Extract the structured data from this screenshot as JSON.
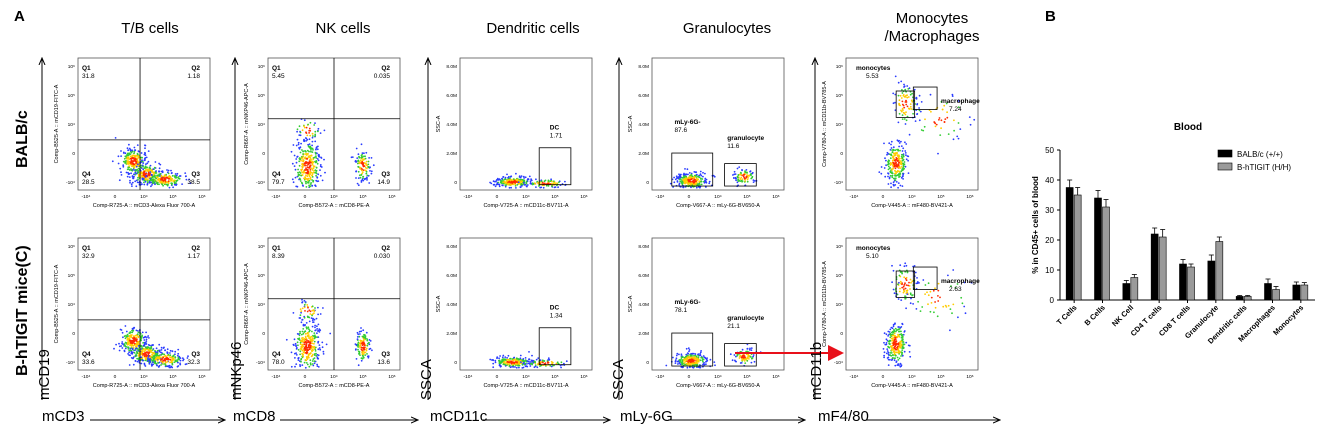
{
  "panel_labels": {
    "a": "A",
    "b": "B"
  },
  "columns": [
    {
      "title": "T/B cells"
    },
    {
      "title": "NK cells"
    },
    {
      "title": "Dendritic cells"
    },
    {
      "title": "Granulocytes"
    },
    {
      "title": "Monocytes\n/Macrophages"
    }
  ],
  "rows": [
    "BALB/c",
    "B-hTIGIT mice(C)"
  ],
  "axis_markers": {
    "bottom": [
      "mCD3",
      "mCD8",
      "mCD11c",
      "mLy-6G",
      "mF4/80"
    ],
    "side": [
      "mCD19",
      "mNKp46",
      "SSCA",
      "SSCA",
      "mCD11b"
    ]
  },
  "flow_plots": [
    {
      "row": 0,
      "col": 0,
      "xlabel": "Comp-R725-A :: mCD3-Alexa Fluor 700-A",
      "ylabel": "Comp-B525-A :: mCD19-FITC-A",
      "gates": [
        {
          "name": "Q1",
          "value": "31.8"
        },
        {
          "name": "Q2",
          "value": "1.18"
        },
        {
          "name": "Q4",
          "value": "28.5"
        },
        {
          "name": "Q3",
          "value": "38.5"
        }
      ]
    },
    {
      "row": 0,
      "col": 1,
      "xlabel": "Comp-B572-A :: mCD8-PE-A",
      "ylabel": "Comp-R667-A :: mNKP46-APC-A",
      "gates": [
        {
          "name": "Q1",
          "value": "5.45"
        },
        {
          "name": "Q2",
          "value": "0.035"
        },
        {
          "name": "Q4",
          "value": "79.7"
        },
        {
          "name": "Q3",
          "value": "14.9"
        }
      ]
    },
    {
      "row": 0,
      "col": 2,
      "xlabel": "Comp-V725-A :: mCD11c-BV711-A",
      "ylabel": "SSC-A",
      "gates": [
        {
          "name": "DC",
          "value": "1.71"
        }
      ]
    },
    {
      "row": 0,
      "col": 3,
      "xlabel": "Comp-V667-A :: mLy-6G-BV650-A",
      "ylabel": "SSC-A",
      "gates": [
        {
          "name": "mLy-6G-",
          "value": "87.6"
        },
        {
          "name": "granulocyte",
          "value": "11.6"
        }
      ]
    },
    {
      "row": 0,
      "col": 4,
      "xlabel": "Comp-V445-A :: mF480-BV421-A",
      "ylabel": "Comp-V780-A :: mCD11b-BV785-A",
      "gates": [
        {
          "name": "monocytes",
          "value": "5.53"
        },
        {
          "name": "macrophage",
          "value": "7.24"
        }
      ]
    },
    {
      "row": 1,
      "col": 0,
      "xlabel": "Comp-R725-A :: mCD3-Alexa Fluor 700-A",
      "ylabel": "Comp-B525-A :: mCD19-FITC-A",
      "gates": [
        {
          "name": "Q1",
          "value": "32.9"
        },
        {
          "name": "Q2",
          "value": "1.17"
        },
        {
          "name": "Q4",
          "value": "33.6"
        },
        {
          "name": "Q3",
          "value": "32.3"
        }
      ]
    },
    {
      "row": 1,
      "col": 1,
      "xlabel": "Comp-B572-A :: mCD8-PE-A",
      "ylabel": "Comp-R667-A :: mNKP46-APC-A",
      "gates": [
        {
          "name": "Q1",
          "value": "8.39"
        },
        {
          "name": "Q2",
          "value": "0.030"
        },
        {
          "name": "Q4",
          "value": "78.0"
        },
        {
          "name": "Q3",
          "value": "13.6"
        }
      ]
    },
    {
      "row": 1,
      "col": 2,
      "xlabel": "Comp-V725-A :: mCD11c-BV711-A",
      "ylabel": "SSC-A",
      "gates": [
        {
          "name": "DC",
          "value": "1.34"
        }
      ]
    },
    {
      "row": 1,
      "col": 3,
      "xlabel": "Comp-V667-A :: mLy-6G-BV650-A",
      "ylabel": "SSC-A",
      "gates": [
        {
          "name": "mLy-6G-",
          "value": "78.1"
        },
        {
          "name": "granulocyte",
          "value": "21.1"
        }
      ]
    },
    {
      "row": 1,
      "col": 4,
      "xlabel": "Comp-V445-A :: mF480-BV421-A",
      "ylabel": "Comp-V780-A :: mCD11b-BV785-A",
      "gates": [
        {
          "name": "monocytes",
          "value": "5.10"
        },
        {
          "name": "macrophage",
          "value": "2.63"
        }
      ]
    }
  ],
  "flow_tick_labels": {
    "log_x": [
      "-10⁴",
      "0",
      "10⁴",
      "10⁵",
      "10⁶"
    ],
    "log_y": [
      "-10⁴",
      "0",
      "10⁴",
      "10⁵",
      "10⁶"
    ],
    "ssc_y": [
      "0",
      "2.0M",
      "4.0M",
      "6.0M",
      "8.0M"
    ]
  },
  "chart_data": {
    "type": "bar",
    "title": "Blood",
    "ylabel": "% in CD45+ cells of blood",
    "xlabel": "",
    "ylim": [
      0,
      50
    ],
    "yticks": [
      0,
      10,
      20,
      30,
      40,
      50
    ],
    "categories": [
      "T Cells",
      "B Cells",
      "NK Cell",
      "CD4 T cells",
      "CD8 T cells",
      "Granulocyte",
      "Dendritic cells",
      "Macrophages",
      "Monocytes"
    ],
    "series": [
      {
        "name": "BALB/c (+/+)",
        "color": "#000000",
        "values": [
          37.5,
          34,
          5.5,
          22,
          12,
          13,
          1.2,
          5.5,
          5
        ],
        "errors": [
          2.5,
          2.5,
          1,
          2,
          1.5,
          2,
          0.3,
          1.5,
          1
        ]
      },
      {
        "name": "B-hTIGIT (H/H)",
        "color": "#9a9a9a",
        "values": [
          35,
          31,
          7.5,
          21,
          11,
          19.5,
          1.2,
          3.5,
          5
        ],
        "errors": [
          2.5,
          2.5,
          1,
          2.5,
          1,
          1.5,
          0.3,
          1,
          0.8
        ]
      }
    ],
    "legend_position": "top-right",
    "grid": false
  },
  "colors": {
    "arrow": "#e8101a",
    "scatter_core": "#ff2a00",
    "scatter_edge": "#2a3cff"
  }
}
